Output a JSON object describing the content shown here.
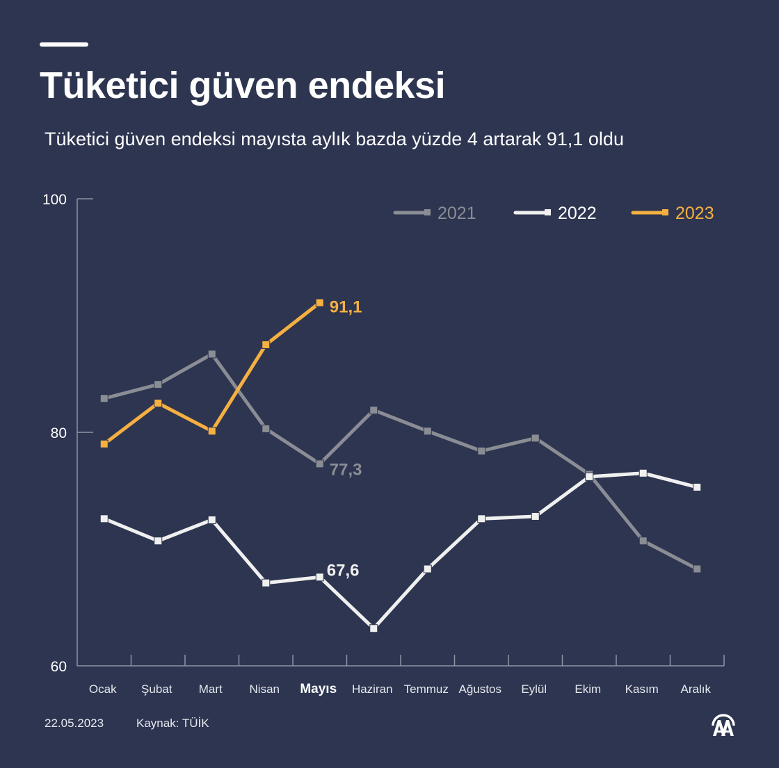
{
  "header": {
    "title": "Tüketici güven endeksi",
    "subtitle": "Tüketici güven endeksi mayısta aylık bazda yüzde 4 artarak 91,1 oldu"
  },
  "footer": {
    "date": "22.05.2023",
    "source": "Kaynak: TÜİK",
    "logo": "aa-logo-icon"
  },
  "colors": {
    "background": "#2d3550",
    "series_2021": "#8a8d94",
    "series_2022": "#f0f0f0",
    "series_2023": "#f5b041",
    "axis": "#8e94a6"
  },
  "chart_data": {
    "type": "line",
    "title": "Tüketici güven endeksi",
    "subtitle": "Tüketici güven endeksi mayısta aylık bazda yüzde 4 artarak 91,1 oldu",
    "xlabel": "",
    "ylabel": "",
    "ylim": [
      60,
      100
    ],
    "yticks": [
      60,
      80,
      100
    ],
    "grid": false,
    "legend_position": "top-right",
    "categories": [
      "Ocak",
      "Şubat",
      "Mart",
      "Nisan",
      "Mayıs",
      "Haziran",
      "Temmuz",
      "Ağustos",
      "Eylül",
      "Ekim",
      "Kasım",
      "Aralık"
    ],
    "highlighted_category": "Mayıs",
    "series": [
      {
        "name": "2021",
        "color": "#8a8d94",
        "values": [
          82.9,
          84.1,
          86.7,
          80.3,
          77.3,
          81.9,
          80.1,
          78.4,
          79.5,
          76.4,
          70.7,
          68.3
        ]
      },
      {
        "name": "2022",
        "color": "#f0f0f0",
        "values": [
          72.6,
          70.7,
          72.5,
          67.1,
          67.6,
          63.2,
          68.3,
          72.6,
          72.8,
          76.2,
          76.5,
          75.3
        ]
      },
      {
        "name": "2023",
        "color": "#f5b041",
        "values": [
          79.0,
          82.5,
          80.1,
          87.5,
          91.1
        ]
      }
    ],
    "annotations": [
      {
        "series": "2023",
        "category": "Mayıs",
        "text": "91,1"
      },
      {
        "series": "2021",
        "category": "Mayıs",
        "text": "77,3"
      },
      {
        "series": "2022",
        "category": "Mayıs",
        "text": "67,6"
      }
    ]
  }
}
